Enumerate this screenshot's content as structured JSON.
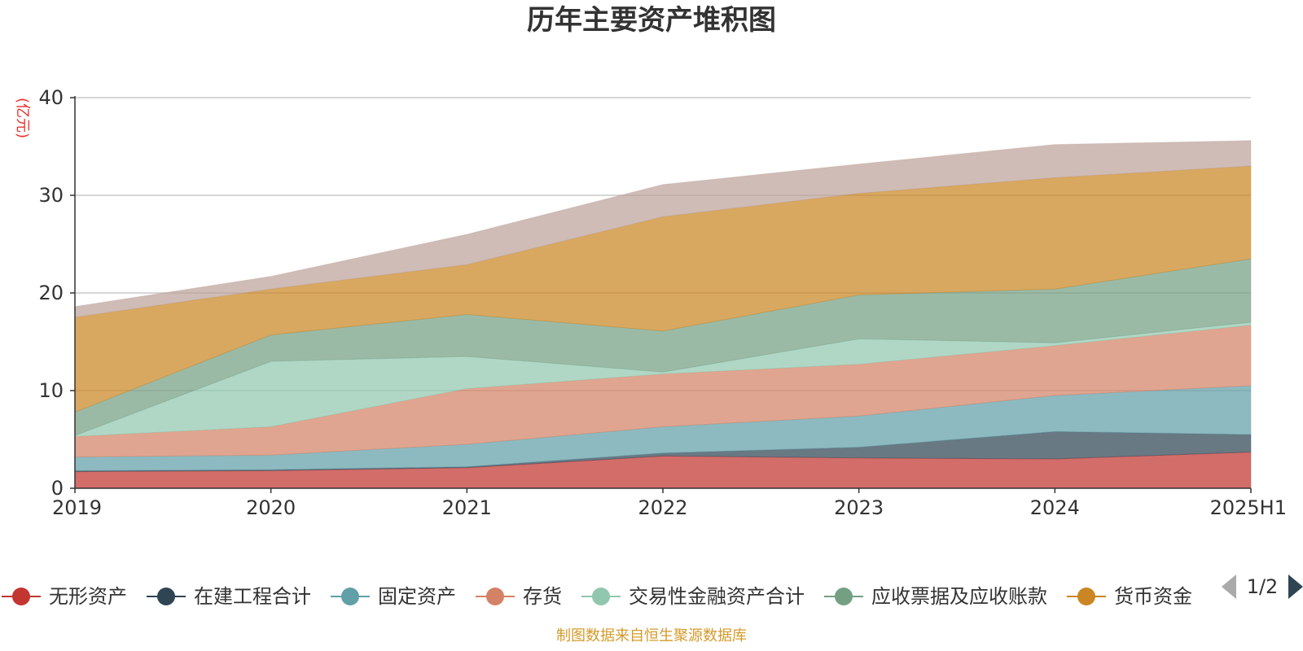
{
  "chart_data": {
    "type": "area",
    "stacked": true,
    "title": "历年主要资产堆积图",
    "ylabel": "(亿元)",
    "xlabel": "",
    "ylim": [
      0,
      40
    ],
    "yticks": [
      0,
      10,
      20,
      30,
      40
    ],
    "grid": true,
    "legend_position": "bottom",
    "categories": [
      "2019",
      "2020",
      "2021",
      "2022",
      "2023",
      "2024",
      "2025H1"
    ],
    "series": [
      {
        "name": "无形资产",
        "color": "#c23531",
        "values": [
          1.7,
          1.8,
          2.1,
          3.3,
          3.1,
          3.0,
          3.7
        ]
      },
      {
        "name": "在建工程合计",
        "color": "#2f4554",
        "values": [
          0.1,
          0.1,
          0.1,
          0.3,
          1.1,
          2.8,
          1.8
        ]
      },
      {
        "name": "固定资产",
        "color": "#61a0a8",
        "values": [
          1.4,
          1.5,
          2.3,
          2.7,
          3.2,
          3.7,
          5.0
        ]
      },
      {
        "name": "存货",
        "color": "#d48265",
        "values": [
          2.1,
          2.9,
          5.7,
          5.4,
          5.3,
          5.1,
          6.2
        ]
      },
      {
        "name": "交易性金融资产合计",
        "color": "#91c7ae",
        "values": [
          0.1,
          6.7,
          3.3,
          0.2,
          2.6,
          0.3,
          0.3
        ]
      },
      {
        "name": "应收票据及应收账款",
        "color": "#749f83",
        "values": [
          2.4,
          2.7,
          4.3,
          4.2,
          4.5,
          5.5,
          6.5
        ]
      },
      {
        "name": "货币资金",
        "color": "#ca8622",
        "values": [
          9.7,
          4.7,
          5.1,
          11.7,
          10.4,
          11.4,
          9.5
        ]
      },
      {
        "name": "",
        "color": "#bda29a",
        "values": [
          1.1,
          1.3,
          3.1,
          3.3,
          3.0,
          3.4,
          2.6
        ]
      }
    ]
  },
  "legend": {
    "pager": "1/2"
  },
  "footer": {
    "source": "制图数据来自恒生聚源数据库"
  }
}
